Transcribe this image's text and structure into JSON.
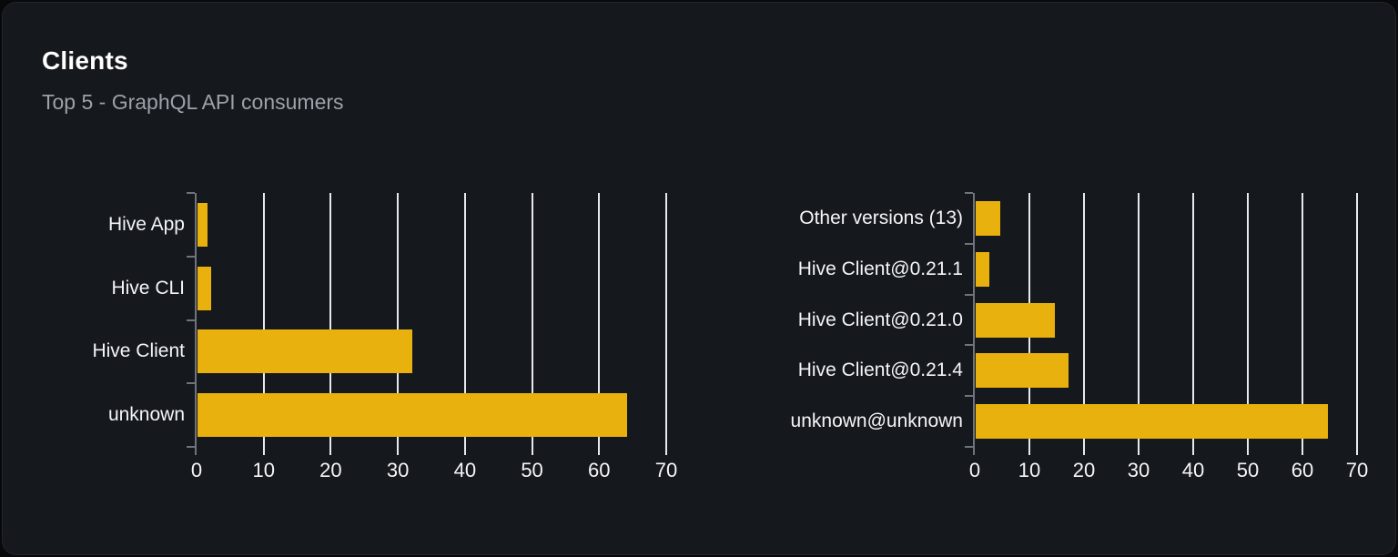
{
  "header": {
    "title": "Clients",
    "subtitle": "Top 5 - GraphQL API consumers"
  },
  "colors": {
    "page_bg": "#08090b",
    "card_bg": "#15181d",
    "bar": "#e8b10d",
    "grid": "#e7e9ee",
    "axis": "#6f747c",
    "title": "#ffffff",
    "subtitle": "#9da2a9",
    "label": "#f4f5f7"
  },
  "chart_data": [
    {
      "type": "bar",
      "orientation": "horizontal",
      "name": "clients-by-name",
      "categories": [
        "Hive App",
        "Hive CLI",
        "Hive Client",
        "unknown"
      ],
      "values": [
        1.5,
        2,
        32,
        64
      ],
      "xlim": [
        0,
        70
      ],
      "xticks": [
        0,
        10,
        20,
        30,
        40,
        50,
        60,
        70
      ],
      "grid": true,
      "legend": false
    },
    {
      "type": "bar",
      "orientation": "horizontal",
      "name": "clients-by-version",
      "categories": [
        "Other versions (13)",
        "Hive Client@0.21.1",
        "Hive Client@0.21.0",
        "Hive Client@0.21.4",
        "unknown@unknown"
      ],
      "values": [
        4.5,
        2.5,
        14.5,
        17,
        64.5
      ],
      "xlim": [
        0,
        70
      ],
      "xticks": [
        0,
        10,
        20,
        30,
        40,
        50,
        60,
        70
      ],
      "grid": true,
      "legend": false
    }
  ]
}
